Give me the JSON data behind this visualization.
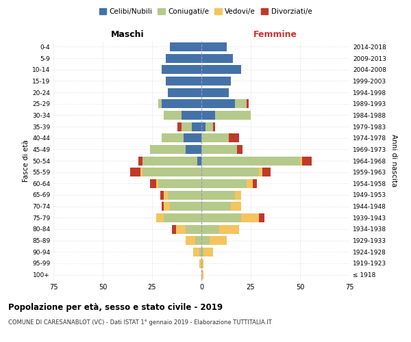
{
  "age_groups": [
    "100+",
    "95-99",
    "90-94",
    "85-89",
    "80-84",
    "75-79",
    "70-74",
    "65-69",
    "60-64",
    "55-59",
    "50-54",
    "45-49",
    "40-44",
    "35-39",
    "30-34",
    "25-29",
    "20-24",
    "15-19",
    "10-14",
    "5-9",
    "0-4"
  ],
  "birth_years": [
    "≤ 1918",
    "1919-1923",
    "1924-1928",
    "1929-1933",
    "1934-1938",
    "1939-1943",
    "1944-1948",
    "1949-1953",
    "1954-1958",
    "1959-1963",
    "1964-1968",
    "1969-1973",
    "1974-1978",
    "1979-1983",
    "1984-1988",
    "1989-1993",
    "1994-1998",
    "1999-2003",
    "2004-2008",
    "2009-2013",
    "2014-2018"
  ],
  "colors": {
    "celibi": "#4472a8",
    "coniugati": "#b5c98a",
    "vedovi": "#f5c45e",
    "divorziati": "#c0392b"
  },
  "maschi": {
    "celibi": [
      0,
      0,
      0,
      0,
      0,
      0,
      0,
      0,
      0,
      0,
      2,
      8,
      9,
      5,
      10,
      20,
      17,
      18,
      20,
      18,
      16
    ],
    "coniugati": [
      0,
      0,
      1,
      3,
      8,
      19,
      16,
      17,
      22,
      30,
      28,
      18,
      11,
      5,
      9,
      2,
      0,
      0,
      0,
      0,
      0
    ],
    "vedovi": [
      0,
      1,
      3,
      5,
      5,
      4,
      3,
      2,
      1,
      1,
      0,
      0,
      0,
      0,
      0,
      0,
      0,
      0,
      0,
      0,
      0
    ],
    "divorziati": [
      0,
      0,
      0,
      0,
      2,
      0,
      1,
      2,
      3,
      5,
      2,
      0,
      0,
      2,
      0,
      0,
      0,
      0,
      0,
      0,
      0
    ]
  },
  "femmine": {
    "celibi": [
      0,
      0,
      0,
      0,
      0,
      0,
      0,
      0,
      0,
      0,
      0,
      0,
      0,
      2,
      7,
      17,
      14,
      15,
      20,
      16,
      13
    ],
    "coniugati": [
      0,
      0,
      1,
      4,
      9,
      20,
      15,
      17,
      23,
      29,
      50,
      18,
      14,
      4,
      18,
      6,
      0,
      0,
      0,
      0,
      0
    ],
    "vedovi": [
      1,
      1,
      5,
      9,
      10,
      9,
      5,
      3,
      3,
      2,
      1,
      0,
      0,
      0,
      0,
      0,
      0,
      0,
      0,
      0,
      0
    ],
    "divorziati": [
      0,
      0,
      0,
      0,
      0,
      3,
      0,
      0,
      2,
      4,
      5,
      3,
      5,
      1,
      0,
      1,
      0,
      0,
      0,
      0,
      0
    ]
  },
  "xlim": 75,
  "title": "Popolazione per età, sesso e stato civile - 2019",
  "subtitle": "COMUNE DI CARESANABLOT (VC) - Dati ISTAT 1° gennaio 2019 - Elaborazione TUTTITALIA.IT",
  "xlabel_left": "Maschi",
  "xlabel_right": "Femmine",
  "ylabel_left": "Fasce di età",
  "ylabel_right": "Anni di nascita",
  "legend_labels": [
    "Celibi/Nubili",
    "Coniugati/e",
    "Vedovi/e",
    "Divorziati/e"
  ]
}
